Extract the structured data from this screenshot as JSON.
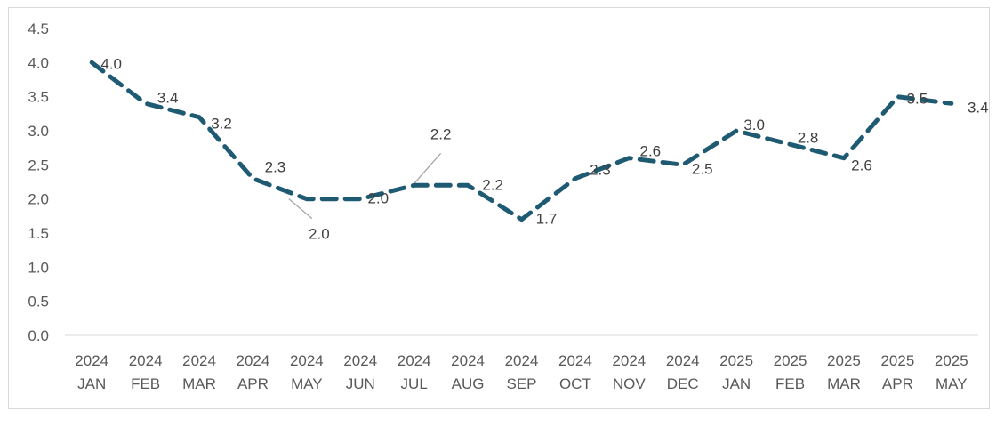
{
  "chart_data": {
    "type": "line",
    "title": "",
    "xlabel": "",
    "ylabel": "",
    "ylim": [
      0,
      4.5
    ],
    "y_ticks": [
      "0.0",
      "0.5",
      "1.0",
      "1.5",
      "2.0",
      "2.5",
      "3.0",
      "3.5",
      "4.0",
      "4.5"
    ],
    "grid": false,
    "legend": "none",
    "categories": [
      {
        "year": "2024",
        "month": "JAN"
      },
      {
        "year": "2024",
        "month": "FEB"
      },
      {
        "year": "2024",
        "month": "MAR"
      },
      {
        "year": "2024",
        "month": "APR"
      },
      {
        "year": "2024",
        "month": "MAY"
      },
      {
        "year": "2024",
        "month": "JUN"
      },
      {
        "year": "2024",
        "month": "JUL"
      },
      {
        "year": "2024",
        "month": "AUG"
      },
      {
        "year": "2024",
        "month": "SEP"
      },
      {
        "year": "2024",
        "month": "OCT"
      },
      {
        "year": "2024",
        "month": "NOV"
      },
      {
        "year": "2024",
        "month": "DEC"
      },
      {
        "year": "2025",
        "month": "JAN"
      },
      {
        "year": "2025",
        "month": "FEB"
      },
      {
        "year": "2025",
        "month": "MAR"
      },
      {
        "year": "2025",
        "month": "APR"
      },
      {
        "year": "2025",
        "month": "MAY"
      }
    ],
    "series": [
      {
        "color": "#1f5a73",
        "line_style": "dashed",
        "values": [
          4.0,
          3.4,
          3.2,
          2.3,
          2.0,
          2.0,
          2.2,
          2.2,
          1.7,
          2.3,
          2.6,
          2.5,
          3.0,
          2.8,
          2.6,
          3.5,
          3.4
        ],
        "data_labels": [
          "4.0",
          "3.4",
          "3.2",
          "2.3",
          "2.0",
          "2.0",
          "2.2",
          "2.2",
          "1.7",
          "2.3",
          "2.6",
          "2.5",
          "3.0",
          "2.8",
          "2.6",
          "3.5",
          "3.4"
        ]
      }
    ]
  }
}
